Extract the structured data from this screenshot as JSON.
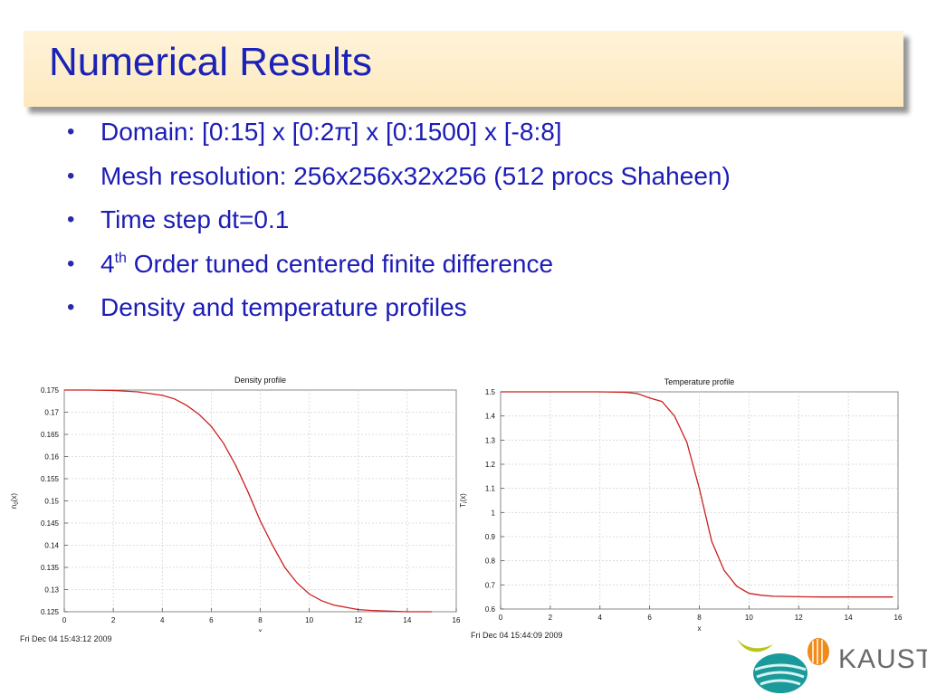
{
  "slide": {
    "title": "Numerical Results",
    "bullets": [
      {
        "text": "Domain: [0:15] x [0:2π] x [0:1500] x [-8:8]"
      },
      {
        "text": "Mesh resolution: 256x256x32x256 (512 procs Shaheen)"
      },
      {
        "text": "Time step dt=0.1"
      },
      {
        "pre": "4",
        "sup": "th",
        "post": " Order tuned centered finite difference"
      },
      {
        "text": "Density and temperature profiles"
      }
    ]
  },
  "chart_data": [
    {
      "type": "line",
      "title": "Density profile",
      "xlabel": "x",
      "ylabel": "n",
      "ylabel_sub": "0",
      "ylabel_suffix": "(x)",
      "xlim": [
        0,
        16
      ],
      "ylim": [
        0.125,
        0.175
      ],
      "xticks": [
        0,
        2,
        4,
        6,
        8,
        10,
        12,
        14,
        16
      ],
      "xtick_labels": [
        "0",
        "2",
        "4",
        "6",
        "8",
        "10",
        "12",
        "14",
        "16"
      ],
      "yticks": [
        0.125,
        0.13,
        0.135,
        0.14,
        0.145,
        0.15,
        0.155,
        0.16,
        0.165,
        0.17,
        0.175
      ],
      "ytick_labels": [
        "0.125",
        "0.13",
        "0.135",
        "0.14",
        "0.145",
        "0.15",
        "0.155",
        "0.16",
        "0.165",
        "0.17",
        "0.175"
      ],
      "grid": true,
      "color": "#cc2020",
      "x": [
        0,
        1,
        2,
        3,
        4,
        4.5,
        5,
        5.5,
        6,
        6.5,
        7,
        7.5,
        8,
        8.5,
        9,
        9.5,
        10,
        10.5,
        11,
        11.5,
        12,
        12.5,
        13,
        14,
        15
      ],
      "y": [
        0.175,
        0.175,
        0.1749,
        0.1746,
        0.1738,
        0.173,
        0.1715,
        0.1695,
        0.1668,
        0.163,
        0.158,
        0.152,
        0.1455,
        0.14,
        0.135,
        0.1315,
        0.129,
        0.1275,
        0.1265,
        0.126,
        0.1255,
        0.1253,
        0.1252,
        0.125,
        0.125
      ],
      "timestamp": "Fri Dec 04 15:43:12 2009"
    },
    {
      "type": "line",
      "title": "Temperature profile",
      "xlabel": "x",
      "ylabel": "T",
      "ylabel_sub": "i",
      "ylabel_suffix": "(x)",
      "xlim": [
        0,
        16
      ],
      "ylim": [
        0.6,
        1.5
      ],
      "xticks": [
        0,
        2,
        4,
        6,
        8,
        10,
        12,
        14,
        16
      ],
      "xtick_labels": [
        "0",
        "2",
        "4",
        "6",
        "8",
        "10",
        "12",
        "14",
        "16"
      ],
      "yticks": [
        0.6,
        0.7,
        0.8,
        0.9,
        1,
        1.1,
        1.2,
        1.3,
        1.4,
        1.5
      ],
      "ytick_labels": [
        "0.6",
        "0.7",
        "0.8",
        "0.9",
        "1",
        "1.1",
        "1.2",
        "1.3",
        "1.4",
        "1.5"
      ],
      "grid": true,
      "color": "#cc2020",
      "x": [
        0,
        2,
        4,
        5,
        5.5,
        6,
        6.5,
        7,
        7.5,
        8,
        8.5,
        9,
        9.5,
        10,
        10.5,
        11,
        12,
        13,
        14,
        15.8
      ],
      "y": [
        1.5,
        1.5,
        1.5,
        1.498,
        1.493,
        1.475,
        1.46,
        1.4,
        1.29,
        1.1,
        0.88,
        0.76,
        0.695,
        0.665,
        0.657,
        0.653,
        0.651,
        0.65,
        0.65,
        0.65
      ],
      "timestamp": "Fri Dec 04 15:44:09 2009"
    }
  ],
  "logo": {
    "text": "KAUST",
    "colors": {
      "orange": "#f08a1c",
      "yellow": "#b8c61a",
      "teal": "#1a9a9a",
      "blue": "#1c6ea0"
    }
  }
}
